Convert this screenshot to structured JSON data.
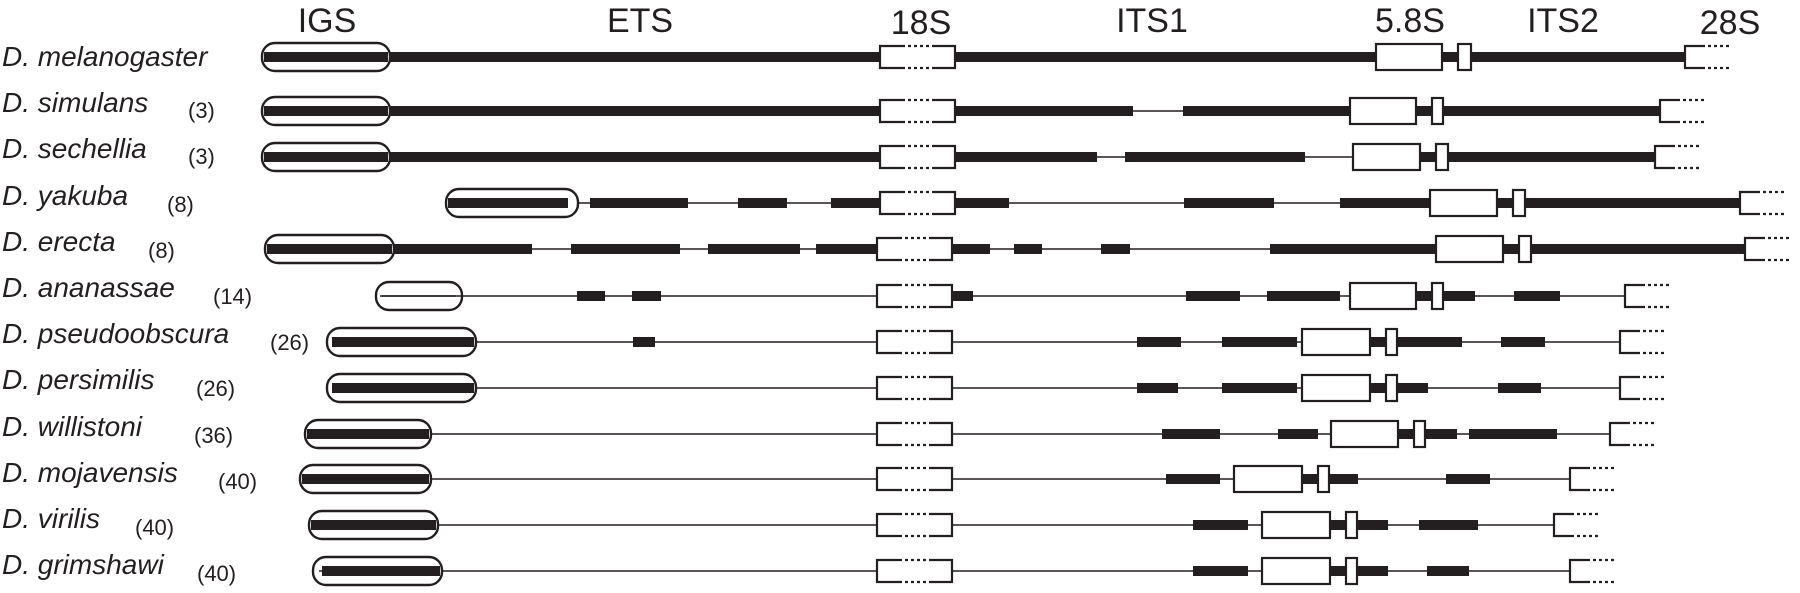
{
  "headers": {
    "igs": "IGS",
    "ets": "ETS",
    "s18": "18S",
    "its1": "ITS1",
    "s58": "5.8S",
    "its2": "ITS2",
    "s28": "28S"
  },
  "species": [
    {
      "name": "D. melanogaster",
      "count": ""
    },
    {
      "name": "D. simulans",
      "count": "(3)"
    },
    {
      "name": "D. sechellia",
      "count": "(3)"
    },
    {
      "name": "D. yakuba",
      "count": "(8)"
    },
    {
      "name": "D. erecta",
      "count": "(8)"
    },
    {
      "name": "D. ananassae",
      "count": "(14)"
    },
    {
      "name": "D. pseudoobscura",
      "count": "(26)"
    },
    {
      "name": "D. persimilis",
      "count": "(26)"
    },
    {
      "name": "D. willistoni",
      "count": "(36)"
    },
    {
      "name": "D. mojavensis",
      "count": "(40)"
    },
    {
      "name": "D. virilis",
      "count": "(40)"
    },
    {
      "name": "D. grimshawi",
      "count": "(40)"
    }
  ],
  "colors": {
    "ink": "#231f20",
    "background": "#ffffff"
  }
}
